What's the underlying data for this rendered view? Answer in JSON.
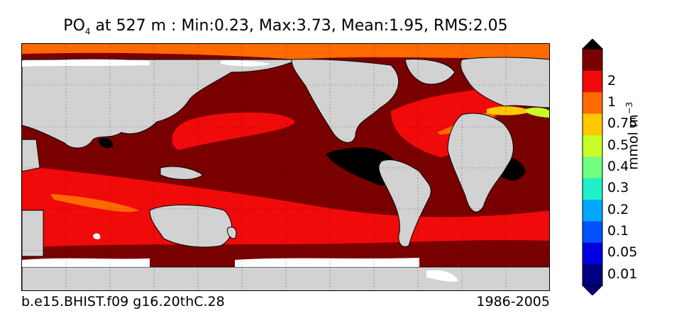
{
  "title": {
    "variable": "PO",
    "subscript": "4",
    "rest": " at 527 m : Min:0.23, Max:3.73, Mean:1.95, RMS:2.05"
  },
  "footer": {
    "case": "b.e15.BHIST.f09 g16.20thC.28",
    "period": "1986-2005"
  },
  "colorbar": {
    "unit": "mmol m",
    "unit_exp": "−3",
    "ticks": [
      "0.01",
      "0.05",
      "0.1",
      "0.2",
      "0.3",
      "0.4",
      "0.5",
      "0.75",
      "1",
      "2"
    ],
    "colors": [
      "#000080",
      "#0000e0",
      "#0050ff",
      "#00a8ff",
      "#20f0c8",
      "#70ff80",
      "#c8ff28",
      "#ffc800",
      "#ff6a00",
      "#f00a0a",
      "#7a0000"
    ],
    "under_color": "#000080",
    "over_color": "#000000"
  },
  "map_colors": {
    "land": "#d2d2d2",
    "no_data": "#ffffff",
    "black": "#000000",
    "dark_red": "#7a0000",
    "red": "#f00a0a",
    "orange": "#ff6a00",
    "yellow": "#ffc800",
    "lime": "#c8ff28"
  }
}
